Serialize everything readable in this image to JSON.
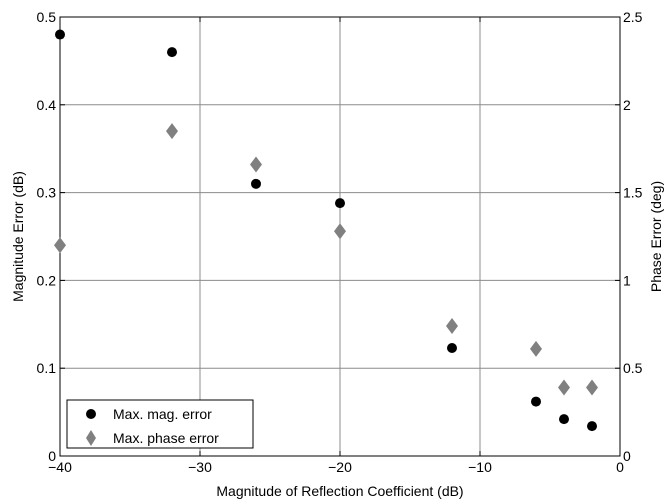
{
  "chart_data": {
    "type": "scatter",
    "title": "",
    "xlabel": "Magnitude of Reflection Coefficient (dB)",
    "ylabel": "Magnitude Error (dB)",
    "y2label": "Phase Error (deg)",
    "xlim": [
      -40,
      0
    ],
    "ylim": [
      0,
      0.5
    ],
    "y2lim": [
      0,
      2.5
    ],
    "xticks": [
      "−40",
      "−30",
      "−20",
      "−10",
      "0"
    ],
    "yticks": [
      "0",
      "0.1",
      "0.2",
      "0.3",
      "0.4",
      "0.5"
    ],
    "y2ticks": [
      "0",
      "0.5",
      "1",
      "1.5",
      "2",
      "2.5"
    ],
    "grid": true,
    "legend_position": "bottom-left",
    "series": [
      {
        "name": "Max. mag. error",
        "axis": "left",
        "marker": "circle",
        "color": "#000000",
        "x": [
          -40,
          -32,
          -26,
          -20,
          -12,
          -6,
          -4,
          -2
        ],
        "y": [
          0.48,
          0.46,
          0.31,
          0.288,
          0.123,
          0.062,
          0.042,
          0.034
        ]
      },
      {
        "name": "Max. phase error",
        "axis": "right",
        "marker": "diamond",
        "color": "#808080",
        "x": [
          -40,
          -32,
          -26,
          -20,
          -12,
          -6,
          -4,
          -2
        ],
        "y": [
          1.2,
          1.85,
          1.66,
          1.28,
          0.74,
          0.61,
          0.39,
          0.39
        ]
      }
    ]
  }
}
